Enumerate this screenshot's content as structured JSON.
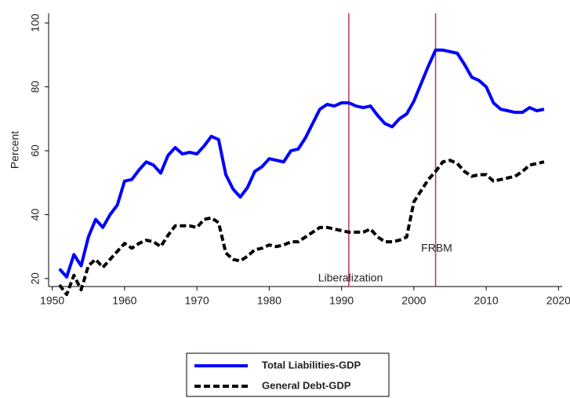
{
  "chart_data": {
    "type": "line",
    "y_label": "Percent",
    "x": [
      1951,
      1952,
      1953,
      1954,
      1955,
      1956,
      1957,
      1958,
      1959,
      1960,
      1961,
      1962,
      1963,
      1964,
      1965,
      1966,
      1967,
      1968,
      1969,
      1970,
      1971,
      1972,
      1973,
      1974,
      1975,
      1976,
      1977,
      1978,
      1979,
      1980,
      1981,
      1982,
      1983,
      1984,
      1985,
      1986,
      1987,
      1988,
      1989,
      1990,
      1991,
      1992,
      1993,
      1994,
      1995,
      1996,
      1997,
      1998,
      1999,
      2000,
      2001,
      2002,
      2003,
      2004,
      2005,
      2006,
      2007,
      2008,
      2009,
      2010,
      2011,
      2012,
      2013,
      2014,
      2015,
      2016,
      2017,
      2018
    ],
    "series": [
      {
        "name": "Total Liabilities-GDP",
        "color": "#0000ff",
        "dash": false,
        "values": [
          23,
          20.5,
          27.5,
          24,
          33,
          38.5,
          36,
          40,
          43,
          50.5,
          51,
          54,
          56.5,
          55.5,
          53,
          58.5,
          61,
          59,
          59.5,
          59,
          61.5,
          64.5,
          63.5,
          52.5,
          48,
          45.5,
          48.5,
          53.5,
          55,
          57.5,
          57,
          56.5,
          60,
          60.5,
          64,
          68.5,
          73,
          74.5,
          74,
          75,
          75,
          74,
          73.5,
          74,
          71,
          68.5,
          67.5,
          70,
          71.5,
          75.5,
          81,
          86.5,
          91.5,
          91.5,
          91,
          90.5,
          87,
          83,
          82,
          80,
          75,
          73,
          72.5,
          72,
          72,
          73.5,
          72.5,
          73
        ]
      },
      {
        "name": "General Debt-GDP",
        "color": "#000000",
        "dash": true,
        "values": [
          18,
          15,
          21,
          16.5,
          24,
          26,
          23.5,
          26,
          28.5,
          31,
          29.5,
          31,
          32,
          31.5,
          30,
          33.5,
          36.5,
          36.5,
          36.5,
          36,
          38.5,
          39,
          37.5,
          28,
          26,
          25.5,
          27,
          29,
          29.5,
          30.5,
          30,
          30.5,
          31.5,
          31.5,
          33,
          34.5,
          36,
          36,
          35.5,
          35,
          34.5,
          34.5,
          34.5,
          35.5,
          33,
          31.5,
          31.5,
          32,
          33,
          44,
          47.5,
          51,
          53.5,
          56.5,
          57,
          56,
          53.5,
          52,
          52.5,
          52.5,
          50.5,
          51,
          51.5,
          52,
          53.5,
          55.5,
          56,
          56.5
        ]
      }
    ],
    "xlim": [
      1949.5,
      2020.5
    ],
    "xticks": [
      1950,
      1960,
      1970,
      1980,
      1990,
      2000,
      2010,
      2020
    ],
    "ylim": [
      17.5,
      103
    ],
    "yticks": [
      20,
      40,
      60,
      80,
      100
    ],
    "vlines": [
      1991,
      2003
    ],
    "vline_color": "#c0305a",
    "annotations": [
      "Liberalization",
      "FRBM"
    ]
  }
}
